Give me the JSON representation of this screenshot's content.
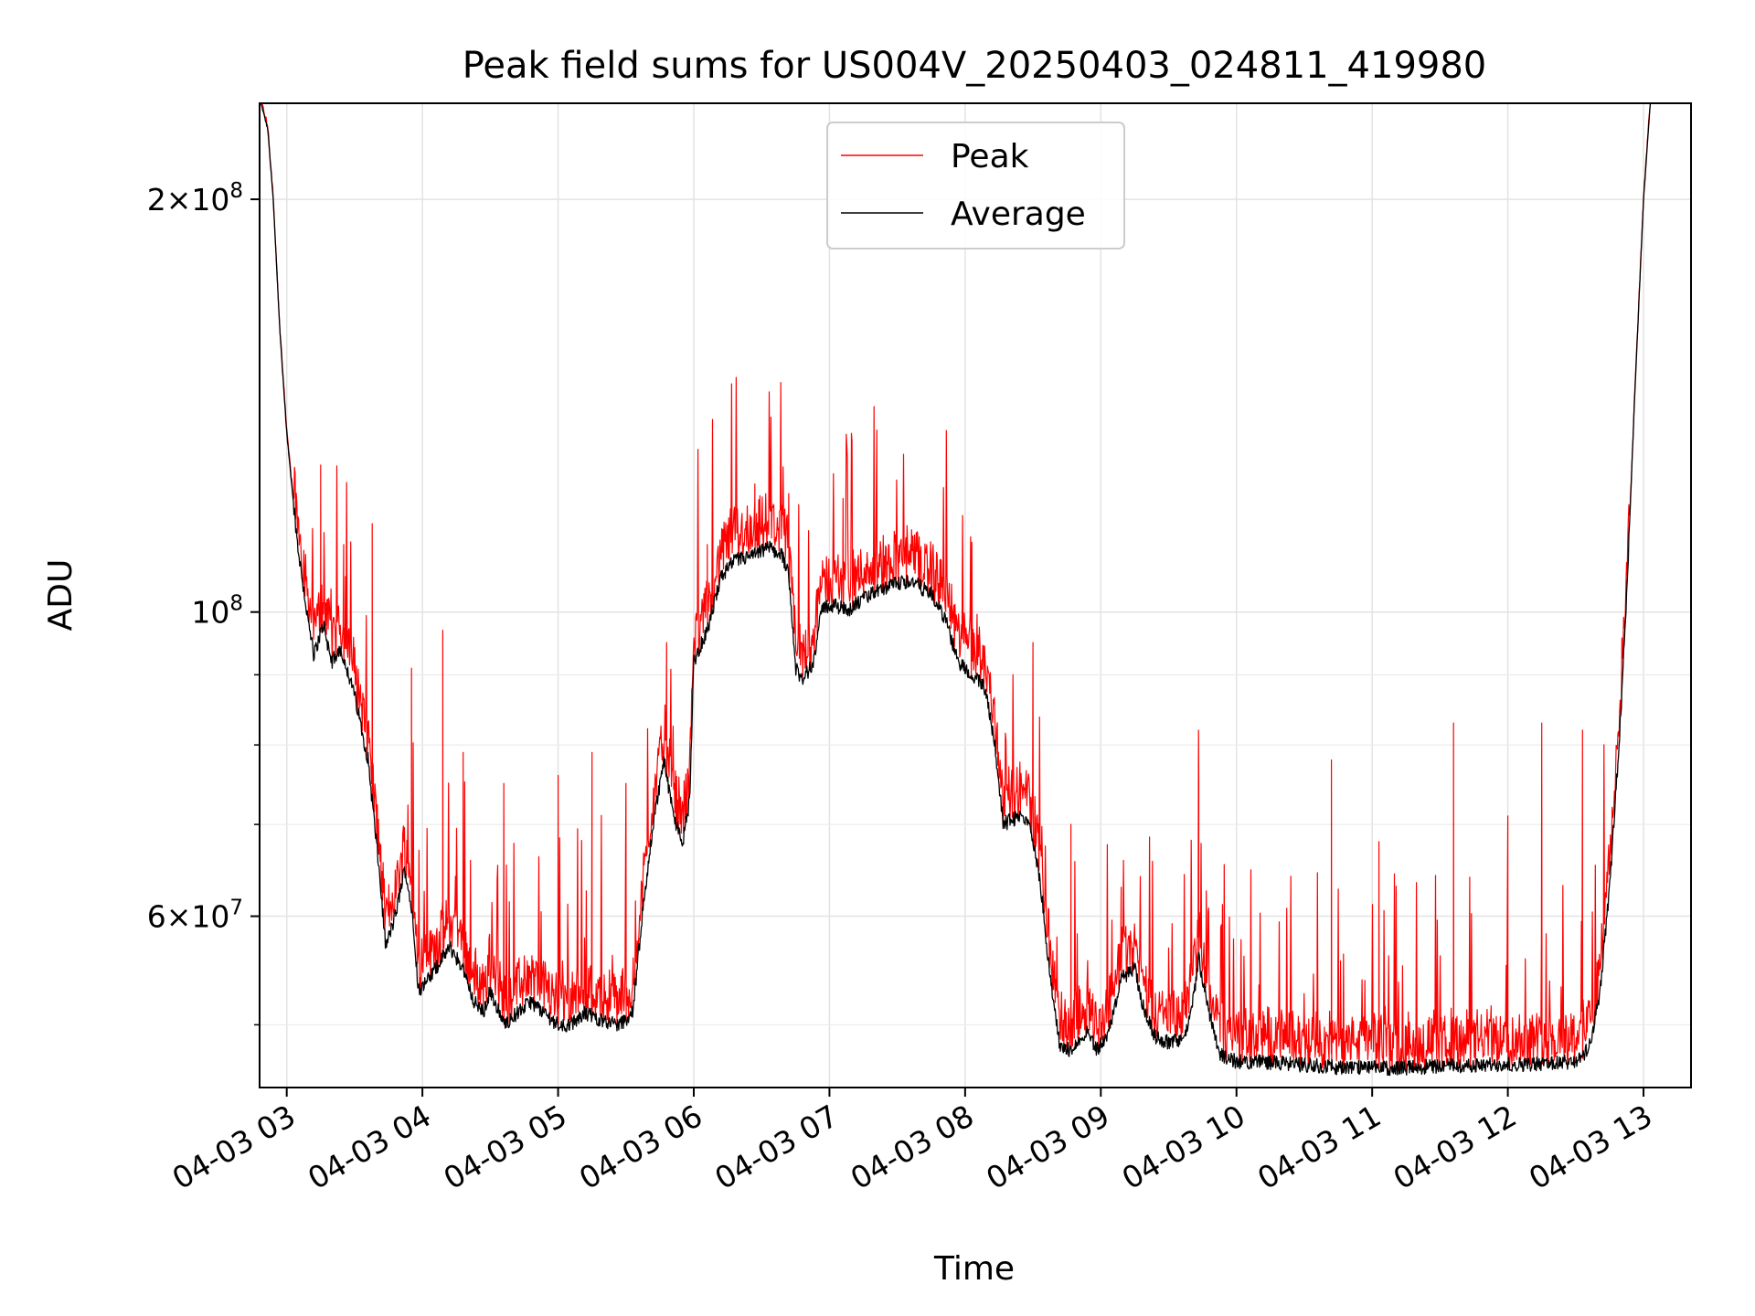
{
  "chart_data": {
    "type": "line",
    "title": "Peak field sums for US004V_20250403_024811_419980",
    "xlabel": "Time",
    "ylabel": "ADU",
    "x_range": [
      "2025-04-03T02:48",
      "2025-04-03T13:21"
    ],
    "ylim": [
      45000000,
      235000000
    ],
    "y_scale": "log",
    "grid": true,
    "legend_position": "top-center",
    "x_tick_labels": [
      "04-03 03",
      "04-03 04",
      "04-03 05",
      "04-03 06",
      "04-03 07",
      "04-03 08",
      "04-03 09",
      "04-03 10",
      "04-03 11",
      "04-03 12",
      "04-03 13"
    ],
    "x_tick_hours": [
      3,
      4,
      5,
      6,
      7,
      8,
      9,
      10,
      11,
      12,
      13
    ],
    "y_tick_labels": [
      {
        "value": 60000000,
        "base": "6",
        "exp": "7"
      },
      {
        "value": 100000000,
        "base": "",
        "exp": "8"
      },
      {
        "value": 200000000,
        "base": "2",
        "exp": "8"
      }
    ],
    "y_minor_ticks": [
      50000000,
      70000000,
      80000000,
      90000000
    ],
    "series": [
      {
        "name": "Peak",
        "color": "#ff0000",
        "description": "noisy envelope above Average; spikes listed below",
        "spikes": [
          [
            3.25,
            128000000
          ],
          [
            3.42,
            112000000
          ],
          [
            3.63,
            116000000
          ],
          [
            3.92,
            91000000
          ],
          [
            4.15,
            97000000
          ],
          [
            4.3,
            79000000
          ],
          [
            4.6,
            75000000
          ],
          [
            5.0,
            76000000
          ],
          [
            5.25,
            79000000
          ],
          [
            5.5,
            75000000
          ],
          [
            5.8,
            95000000
          ],
          [
            6.1,
            112000000
          ],
          [
            6.45,
            124000000
          ],
          [
            6.7,
            122000000
          ],
          [
            7.1,
            121000000
          ],
          [
            7.35,
            110000000
          ],
          [
            8.5,
            95000000
          ],
          [
            8.78,
            70000000
          ],
          [
            9.15,
            63000000
          ],
          [
            9.72,
            82000000
          ],
          [
            10.7,
            78000000
          ],
          [
            11.05,
            68000000
          ],
          [
            11.6,
            83000000
          ],
          [
            12.0,
            71000000
          ],
          [
            12.25,
            83000000
          ],
          [
            12.55,
            82000000
          ]
        ]
      },
      {
        "name": "Average",
        "color": "#000000",
        "points": [
          [
            2.81,
            235000000
          ],
          [
            2.86,
            225000000
          ],
          [
            2.9,
            200000000
          ],
          [
            2.95,
            160000000
          ],
          [
            3.0,
            135000000
          ],
          [
            3.08,
            112000000
          ],
          [
            3.16,
            98000000
          ],
          [
            3.2,
            93000000
          ],
          [
            3.27,
            98000000
          ],
          [
            3.33,
            92000000
          ],
          [
            3.4,
            94000000
          ],
          [
            3.5,
            87000000
          ],
          [
            3.6,
            78000000
          ],
          [
            3.68,
            65000000
          ],
          [
            3.73,
            57000000
          ],
          [
            3.8,
            60000000
          ],
          [
            3.87,
            65000000
          ],
          [
            3.93,
            60000000
          ],
          [
            3.97,
            53000000
          ],
          [
            4.05,
            54000000
          ],
          [
            4.15,
            56000000
          ],
          [
            4.2,
            57000000
          ],
          [
            4.3,
            55000000
          ],
          [
            4.38,
            52000000
          ],
          [
            4.45,
            51000000
          ],
          [
            4.5,
            53000000
          ],
          [
            4.6,
            50000000
          ],
          [
            4.7,
            51000000
          ],
          [
            4.8,
            52000000
          ],
          [
            4.9,
            51000000
          ],
          [
            5.0,
            50000000
          ],
          [
            5.1,
            50000000
          ],
          [
            5.2,
            51000000
          ],
          [
            5.3,
            50500000
          ],
          [
            5.45,
            50000000
          ],
          [
            5.55,
            51000000
          ],
          [
            5.62,
            60000000
          ],
          [
            5.7,
            70000000
          ],
          [
            5.78,
            78000000
          ],
          [
            5.85,
            71000000
          ],
          [
            5.92,
            68000000
          ],
          [
            5.97,
            73000000
          ],
          [
            6.0,
            92000000
          ],
          [
            6.1,
            97000000
          ],
          [
            6.2,
            106000000
          ],
          [
            6.3,
            109000000
          ],
          [
            6.45,
            110000000
          ],
          [
            6.55,
            111500000
          ],
          [
            6.65,
            110000000
          ],
          [
            6.7,
            107000000
          ],
          [
            6.75,
            91000000
          ],
          [
            6.8,
            89000000
          ],
          [
            6.88,
            92000000
          ],
          [
            6.95,
            101000000
          ],
          [
            7.05,
            101000000
          ],
          [
            7.15,
            100500000
          ],
          [
            7.3,
            103000000
          ],
          [
            7.45,
            104500000
          ],
          [
            7.6,
            105500000
          ],
          [
            7.75,
            103000000
          ],
          [
            7.85,
            99000000
          ],
          [
            7.95,
            92000000
          ],
          [
            8.05,
            90000000
          ],
          [
            8.15,
            88000000
          ],
          [
            8.22,
            80000000
          ],
          [
            8.28,
            70000000
          ],
          [
            8.4,
            71000000
          ],
          [
            8.48,
            70000000
          ],
          [
            8.55,
            64000000
          ],
          [
            8.62,
            55000000
          ],
          [
            8.7,
            48000000
          ],
          [
            8.8,
            48000000
          ],
          [
            8.9,
            49500000
          ],
          [
            8.97,
            48000000
          ],
          [
            9.05,
            49000000
          ],
          [
            9.15,
            54000000
          ],
          [
            9.25,
            55000000
          ],
          [
            9.3,
            52000000
          ],
          [
            9.4,
            49000000
          ],
          [
            9.5,
            48500000
          ],
          [
            9.62,
            49000000
          ],
          [
            9.68,
            52000000
          ],
          [
            9.72,
            56000000
          ],
          [
            9.78,
            52000000
          ],
          [
            9.88,
            47500000
          ],
          [
            10.0,
            47000000
          ],
          [
            10.2,
            47000000
          ],
          [
            10.4,
            46800000
          ],
          [
            10.6,
            46700000
          ],
          [
            10.8,
            46500000
          ],
          [
            11.0,
            46500000
          ],
          [
            11.2,
            46500000
          ],
          [
            11.4,
            46600000
          ],
          [
            11.6,
            46700000
          ],
          [
            11.8,
            46700000
          ],
          [
            12.0,
            46800000
          ],
          [
            12.2,
            46800000
          ],
          [
            12.4,
            46900000
          ],
          [
            12.55,
            47200000
          ],
          [
            12.62,
            49000000
          ],
          [
            12.68,
            53000000
          ],
          [
            12.75,
            63000000
          ],
          [
            12.82,
            80000000
          ],
          [
            12.88,
            105000000
          ],
          [
            12.93,
            140000000
          ],
          [
            13.0,
            200000000
          ],
          [
            13.05,
            235000000
          ]
        ]
      }
    ]
  }
}
